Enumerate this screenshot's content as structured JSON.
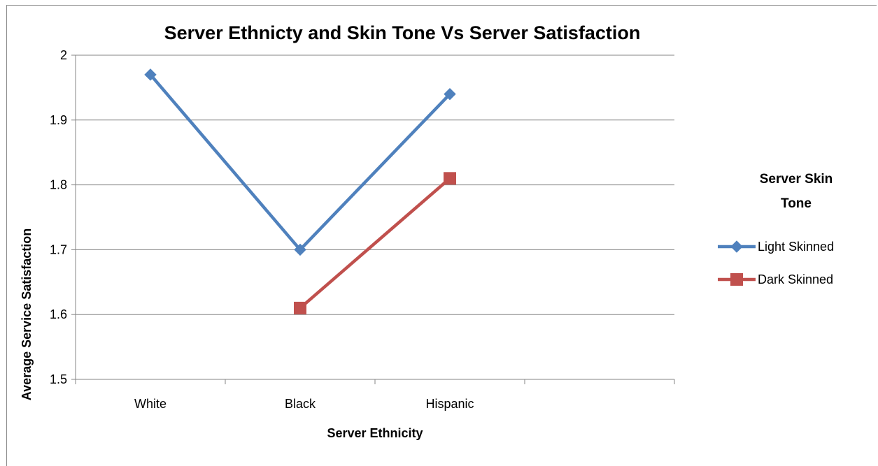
{
  "chart_data": {
    "type": "line",
    "title": "Server Ethnicty and Skin Tone Vs  Server Satisfaction",
    "xlabel": "Server Ethnicity",
    "ylabel": "Average Service Satisfaction",
    "categories": [
      "White",
      "Black",
      "Hispanic",
      ""
    ],
    "ylim": [
      1.5,
      2
    ],
    "yticks": [
      "1.5",
      "1.6",
      "1.7",
      "1.8",
      "1.9",
      "2"
    ],
    "grid": true,
    "legend": {
      "title": "Server Skin Tone",
      "title_lines": [
        "Server Skin",
        "Tone"
      ],
      "placement": "right"
    },
    "series": [
      {
        "name": "Light Skinned",
        "values": [
          1.97,
          1.7,
          1.94,
          null
        ],
        "color": "#4f81bd",
        "marker": "diamond"
      },
      {
        "name": "Dark Skinned",
        "values": [
          null,
          1.61,
          1.81,
          null
        ],
        "color": "#c0504d",
        "marker": "square"
      }
    ]
  }
}
